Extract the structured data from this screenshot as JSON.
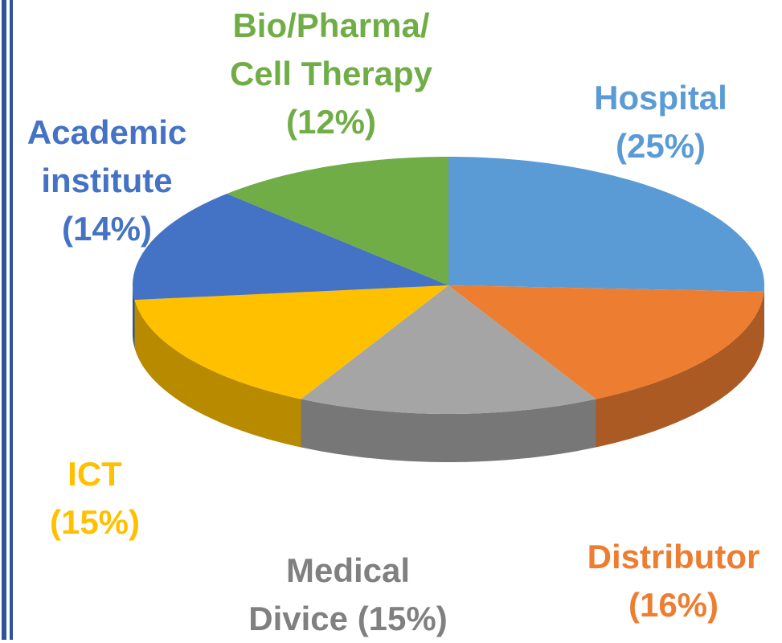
{
  "chart_data": {
    "type": "pie3d",
    "categories": [
      "Hospital",
      "Distributor",
      "Medical Divice",
      "ICT",
      "Academic institute",
      "Bio/Pharma/Cell Therapy"
    ],
    "values": [
      25,
      16,
      15,
      15,
      14,
      12
    ],
    "value_labels": [
      "(25%)",
      "(16%)",
      "(15%)",
      "(15%)",
      "(14%)",
      "(12%)"
    ],
    "colors": [
      "#5b9bd5",
      "#ed7d31",
      "#a5a5a5",
      "#ffc000",
      "#4472c4",
      "#70ad47"
    ]
  }
}
